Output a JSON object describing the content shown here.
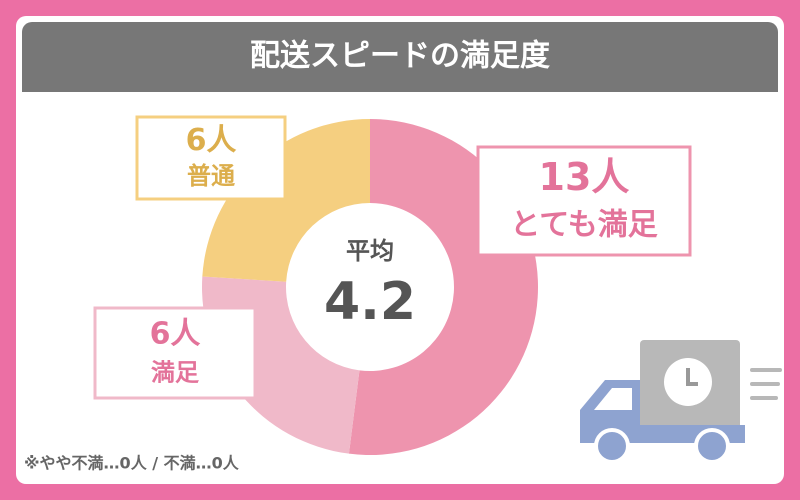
{
  "chart_data": {
    "type": "donut",
    "title": "配送スピードの満足度",
    "categories": [
      "とても満足",
      "満足",
      "普通"
    ],
    "values": [
      13,
      6,
      6
    ],
    "value_labels": [
      "13人",
      "6人",
      "6人"
    ],
    "colors": [
      "#ee94ae",
      "#f0b9c9",
      "#f5cf80"
    ],
    "center_label": "平均",
    "center_value": 4.2,
    "note": "※やや不満…0人 / 不満…0人"
  }
}
